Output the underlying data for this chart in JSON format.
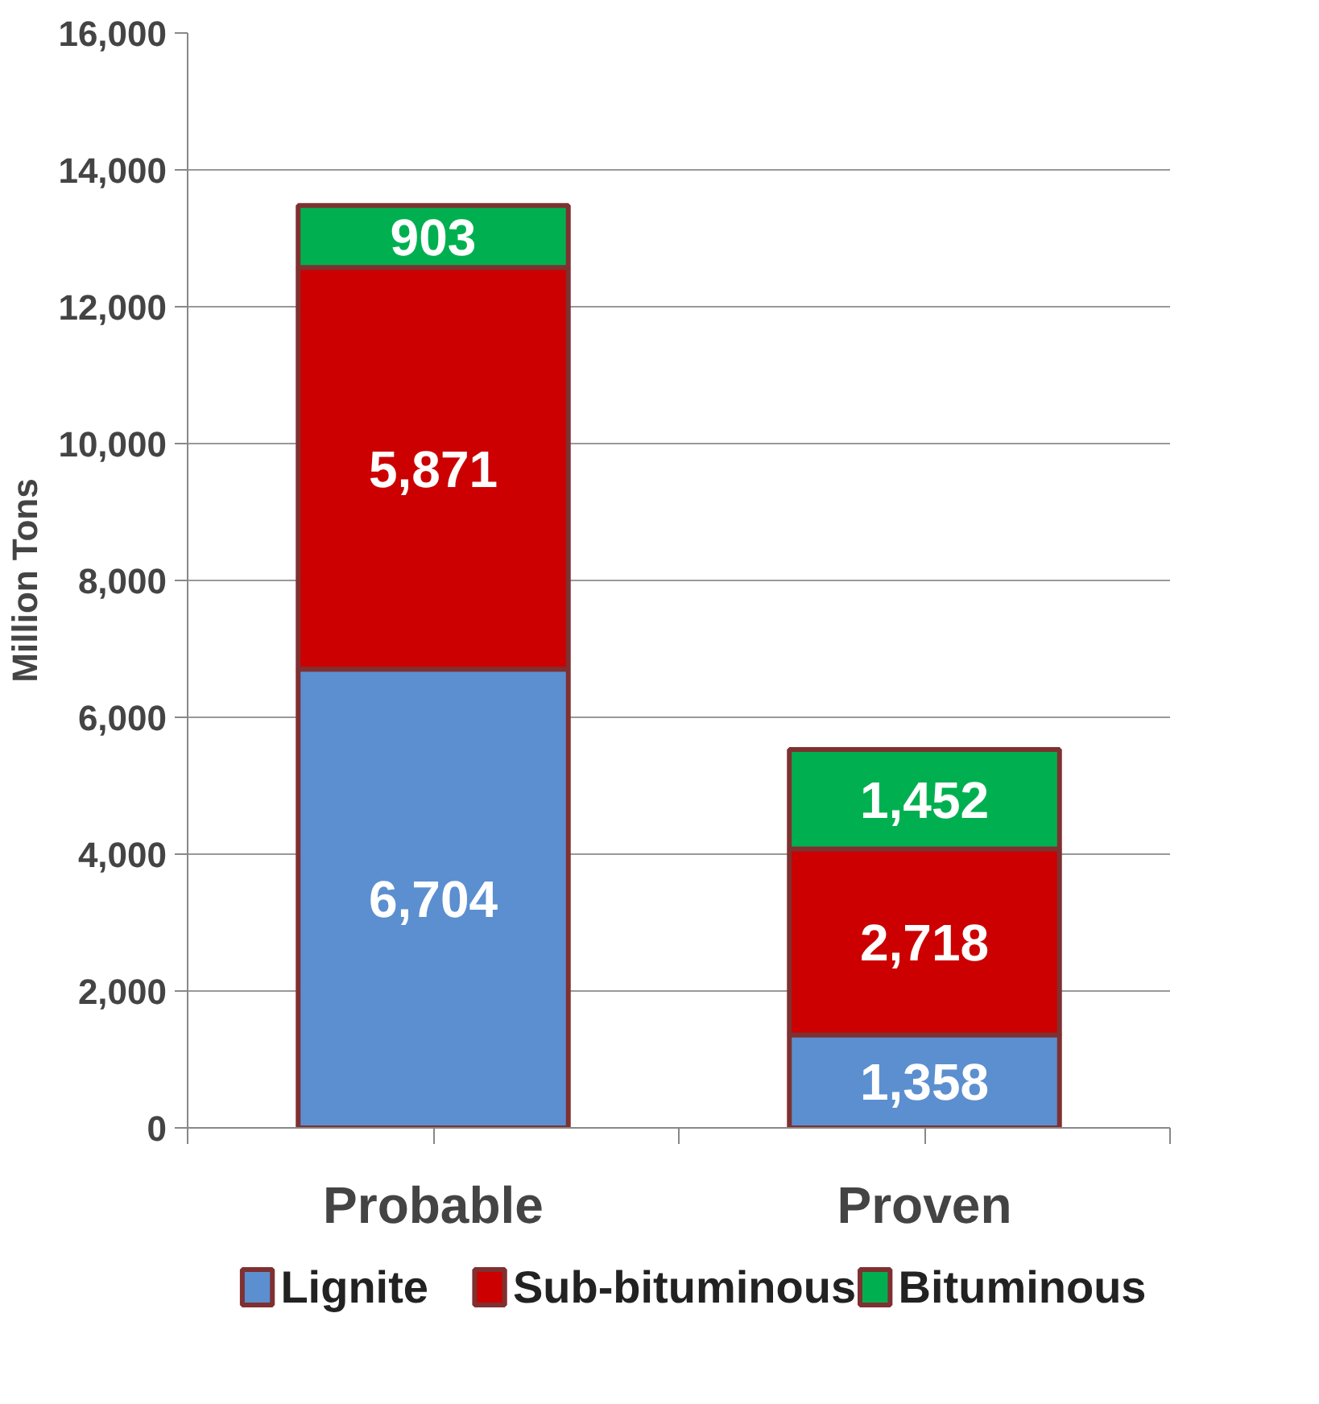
{
  "chart_data": {
    "type": "bar",
    "stacked": true,
    "ylabel": "Million Tons",
    "categories": [
      "Probable",
      "Proven"
    ],
    "series": [
      {
        "name": "Lignite",
        "color": "#5b8fd0",
        "values": [
          6704,
          1358
        ],
        "value_labels": [
          "6,704",
          "1,358"
        ]
      },
      {
        "name": "Sub-bituminous",
        "color": "#cc0000",
        "values": [
          5871,
          2718
        ],
        "value_labels": [
          "5,871",
          "2,718"
        ]
      },
      {
        "name": "Bituminous",
        "color": "#00b050",
        "values": [
          903,
          1452
        ],
        "value_labels": [
          "903",
          "1,452"
        ]
      }
    ],
    "ylim": [
      0,
      16000
    ],
    "yticks": [
      {
        "value": 0,
        "label": "0"
      },
      {
        "value": 2000,
        "label": "2,000"
      },
      {
        "value": 4000,
        "label": "4,000"
      },
      {
        "value": 6000,
        "label": "6,000"
      },
      {
        "value": 8000,
        "label": "8,000"
      },
      {
        "value": 10000,
        "label": "10,000"
      },
      {
        "value": 12000,
        "label": "12,000"
      },
      {
        "value": 14000,
        "label": "14,000"
      },
      {
        "value": 16000,
        "label": "16,000"
      }
    ],
    "grid": "y",
    "legend": "bottom"
  }
}
